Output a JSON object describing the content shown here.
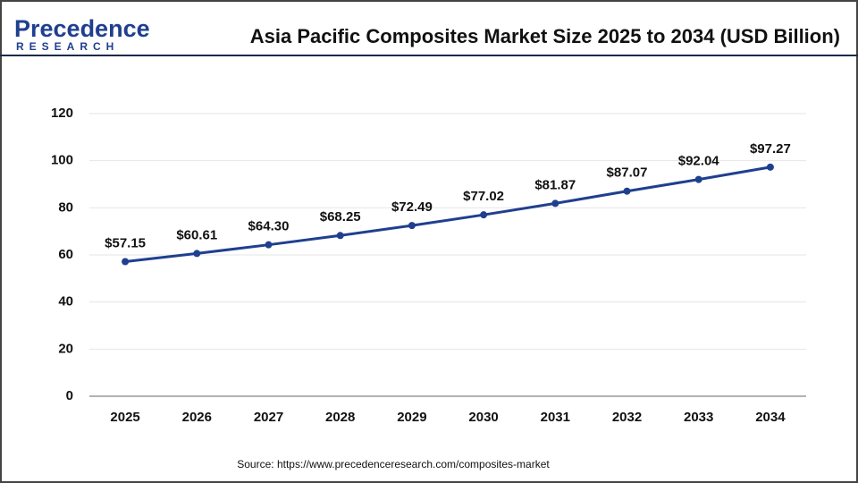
{
  "logo": {
    "name": "Precedence",
    "tagline": "RESEARCH"
  },
  "chart_data": {
    "type": "line",
    "title": "Asia Pacific Composites Market Size 2025 to 2034 (USD Billion)",
    "categories": [
      "2025",
      "2026",
      "2027",
      "2028",
      "2029",
      "2030",
      "2031",
      "2032",
      "2033",
      "2034"
    ],
    "values": [
      57.15,
      60.61,
      64.3,
      68.25,
      72.49,
      77.02,
      81.87,
      87.07,
      92.04,
      97.27
    ],
    "value_labels": [
      "$57.15",
      "$60.61",
      "$64.30",
      "$68.25",
      "$72.49",
      "$77.02",
      "$81.87",
      "$87.07",
      "$92.04",
      "$97.27"
    ],
    "color": "#1f3f8f",
    "ylim": [
      0,
      120
    ],
    "yticks": [
      0,
      20,
      40,
      60,
      80,
      100,
      120
    ],
    "grid": true,
    "source": "Source: https://www.precedenceresearch.com/composites-market"
  }
}
